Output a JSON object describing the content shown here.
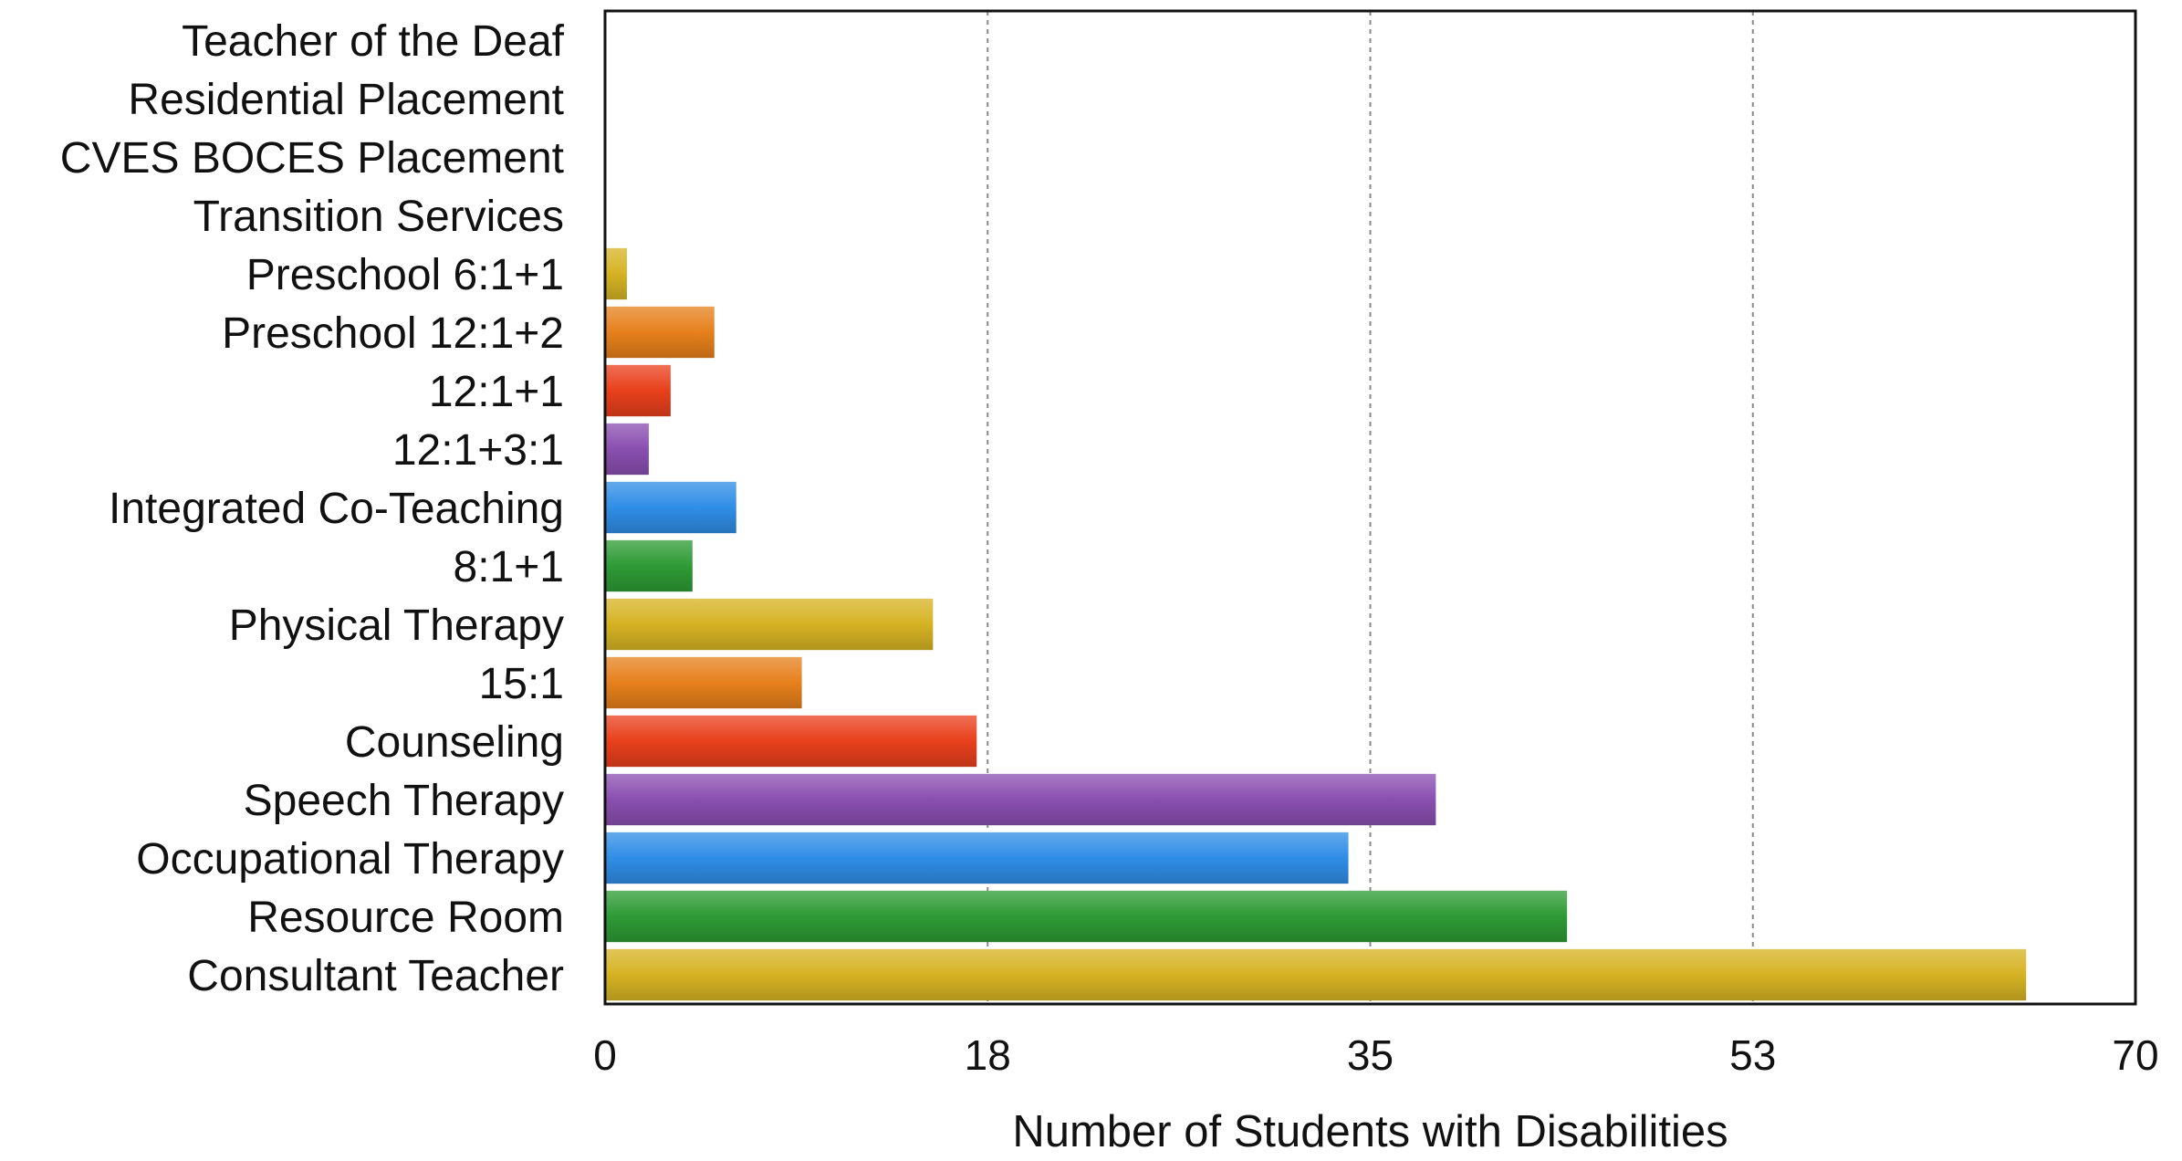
{
  "chart_data": {
    "type": "bar",
    "orientation": "horizontal",
    "title": "",
    "xlabel": "Number of Students with Disabilities",
    "ylabel": "",
    "xlim": [
      0,
      70
    ],
    "x_ticks": [
      "0",
      "18",
      "35",
      "53",
      "70"
    ],
    "grid": "vertical dashed",
    "categories": [
      "Teacher of the Deaf",
      "Residential Placement",
      "CVES BOCES Placement",
      "Transition Services",
      "Preschool 6:1+1",
      "Preschool 12:1+2",
      "12:1+1",
      "12:1+3:1",
      "Integrated Co-Teaching",
      "8:1+1",
      "Physical Therapy",
      "15:1",
      "Counseling",
      "Speech Therapy",
      "Occupational Therapy",
      "Resource Room",
      "Consultant Teacher"
    ],
    "values": [
      0,
      0,
      0,
      0,
      1,
      5,
      3,
      2,
      6,
      4,
      15,
      9,
      17,
      38,
      34,
      44,
      65
    ],
    "colors": [
      "#e8401c",
      "#8a4fb0",
      "#2f8ee6",
      "#2e9b35",
      "#d6b323",
      "#e6801c",
      "#e8401c",
      "#8a4fb0",
      "#2f8ee6",
      "#2e9b35",
      "#d6b323",
      "#e6801c",
      "#e8401c",
      "#8a4fb0",
      "#2f8ee6",
      "#2e9b35",
      "#d6b323"
    ]
  }
}
